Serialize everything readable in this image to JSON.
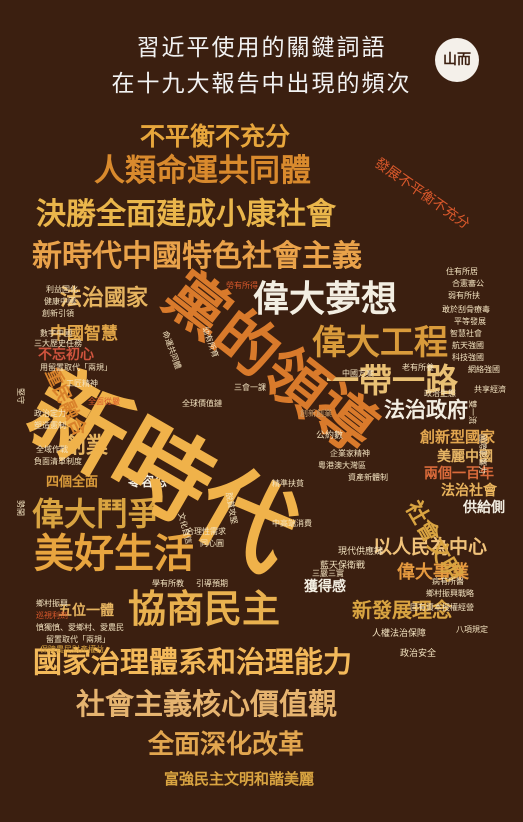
{
  "title_line1": "習近平使用的關鍵詞語",
  "title_line2": "在十九大報告中出現的頻次",
  "logo_text": "山而",
  "colors": {
    "background": "#3b1f10",
    "gold": "#d9a441",
    "orange": "#d9822b",
    "cream": "#f3e3c0",
    "brown": "#8a5a2b",
    "white": "#f4f0ea"
  },
  "words": {
    "w1": "不平衡不充分",
    "w2": "人類命運共同體",
    "w3": "決勝全面建成小康社會",
    "w4": "新時代中國特色社會主義",
    "w5": "偉大夢想",
    "w6": "黨的領導",
    "w7": "新時代",
    "w8": "偉大工程",
    "w9": "法治國家",
    "w10": "一帶一路",
    "w11": "中國智慧",
    "w12": "不忘初心",
    "w13": "法治政府",
    "w14": "創新型國家",
    "w15": "美麗中國",
    "w16": "兩個一百年",
    "w17": "法治社會",
    "w18": "供給側",
    "w19": "偉大鬥爭",
    "w20": "創業",
    "w21": "零容忍",
    "w22": "四個全面",
    "w23": "美好生活",
    "w24": "社會文明",
    "w25": "以人民為中心",
    "w26": "偉大事業",
    "w27": "獲得感",
    "w28": "協商民主",
    "w29": "新發展理念",
    "w30": "五位一體",
    "w31": "國家治理體系和治理能力",
    "w32": "社會主義核心價值觀",
    "w33": "全面深化改革",
    "w34": "富強民主文明和諧美麗",
    "w35": "發展不平衡不充分",
    "w36": "重民融合",
    "w37": "全面從嚴",
    "w38": "現代供應鏈",
    "w39": "藍天保衛戰",
    "w40": "精準扶貧",
    "w41": "人權法治保障",
    "w42": "政治安全",
    "w43": "公約數",
    "w44": "創新創業",
    "w45": "三會一課",
    "w46": "全球價值鏈",
    "w47": "中高端消費",
    "w48": "合理性需求",
    "w49": "同心圓",
    "w50": "學有所教",
    "w51": "引導預期",
    "w52": "鄉村振興",
    "w53": "巡視利劍",
    "w54": "慎獨慎、愛鄉村、愛農民",
    "w55": "留置取代「兩規」",
    "w56": "保障農民財產權益",
    "w57": "利益固化",
    "w58": "健康中國",
    "w59": "創新引領",
    "w60": "弱有所扶",
    "w61": "住有所居",
    "w62": "合憲審公",
    "w63": "智慧社會",
    "w64": "航天強國",
    "w65": "科技強國",
    "w66": "網絡強國",
    "w67": "共享經濟",
    "w68": "老有所養",
    "w69": "中國方案",
    "w70": "勞有所得",
    "w71": "三大歷史任務",
    "w72": "用留置取代「兩規」",
    "w73": "工匠精神",
    "w74": "政治定力",
    "w75": "塑造憲制",
    "w76": "全域作戰",
    "w77": "負面清單制度",
    "w78": "八項規定",
    "w79": "病有所醫",
    "w80": "鄉村振興戰略",
    "w81": "企業家精神",
    "w82": "粵港澳大灣區",
    "w83": "數字中國",
    "w84": "命運共同體",
    "w85": "平等發展",
    "w86": "政治生態",
    "w87": "幼有所育",
    "w88": "脫貧攻堅",
    "w89": "文化自信",
    "w90": "三嚴三實",
    "w91": "資產新體制",
    "w92": "固有資本授權經營",
    "w93": "雙一流",
    "w94": "敢於刮骨療毒",
    "w95": "國際影響力",
    "w96": "堅守",
    "w97": "勢開"
  }
}
